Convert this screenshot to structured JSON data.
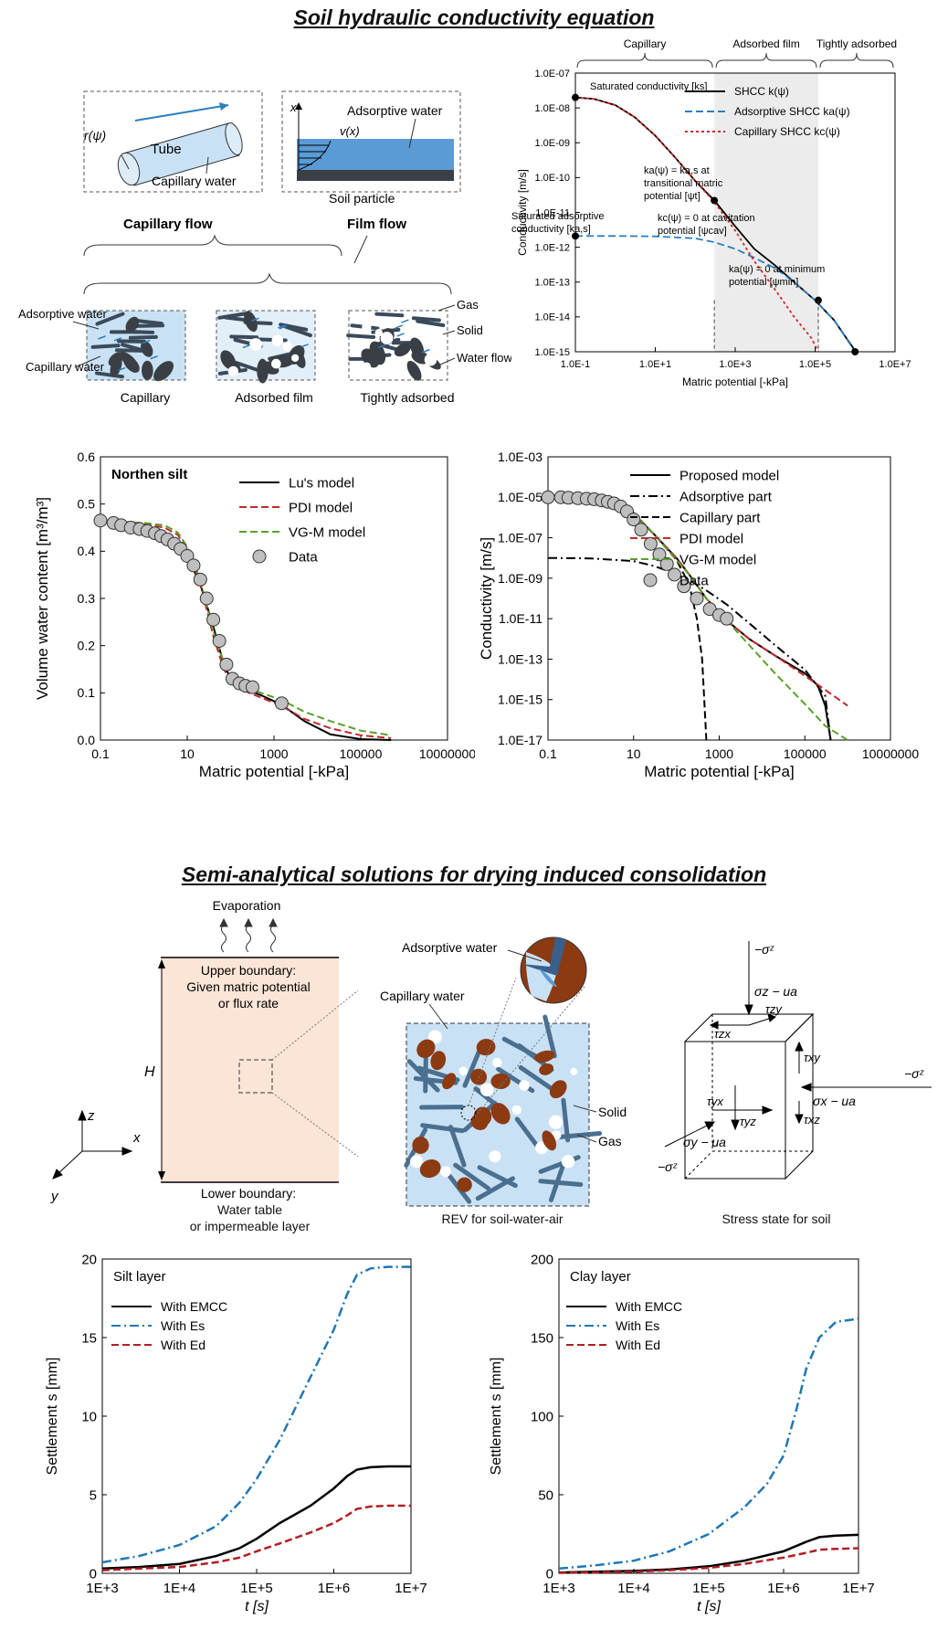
{
  "section1": {
    "title": "Soil hydraulic conductivity equation"
  },
  "section2": {
    "title": "Semi-analytical solutions for drying induced consolidation"
  },
  "flow_schematic": {
    "tube_label": "Tube",
    "radius_label": "r(ψ)",
    "capillary_water_label": "Capillary water",
    "x_axis": "x",
    "adsorptive_water_label": "Adsorptive water",
    "velocity_label": "v(x)",
    "soil_particle_label": "Soil particle",
    "capillary_flow_label": "Capillary flow",
    "film_flow_label": "Film flow",
    "panels": [
      "Capillary",
      "Adsorbed film",
      "Tightly adsorbed"
    ],
    "left_labels": [
      "Adsorptive water",
      "Capillary water"
    ],
    "right_labels": [
      "Gas",
      "Solid",
      "Water flow"
    ]
  },
  "chart_data": [
    {
      "type": "line",
      "id": "shcc",
      "xlabel": "Matric potential [-kPa]",
      "ylabel": "Conductivity [m/s]",
      "xscale": "log",
      "yscale": "log",
      "xlim": [
        0.1,
        10000000
      ],
      "ylim": [
        1e-15,
        1e-07
      ],
      "x_ticks": [
        "1.0E-1",
        "1.0E+1",
        "1.0E+3",
        "1.0E+5",
        "1.0E+7"
      ],
      "y_ticks": [
        "1.0E-07",
        "1.0E-08",
        "1.0E-09",
        "1.0E-10",
        "1.0E-11",
        "1.0E-12",
        "1.0E-13",
        "1.0E-14",
        "1.0E-15"
      ],
      "regions": [
        "Capillary",
        "Adsorbed film",
        "Tightly adsorbed"
      ],
      "legend_position": "top-right",
      "series": [
        {
          "name": "SHCC k(ψ)",
          "color": "#000000",
          "style": "solid",
          "x": [
            0.1,
            0.3,
            1,
            3,
            10,
            30,
            100,
            300,
            1000,
            3000,
            10000,
            30000,
            100000,
            300000,
            600000,
            900000,
            1000000
          ],
          "y": [
            2e-08,
            1.8e-08,
            1.2e-08,
            5.5e-09,
            1.6e-09,
            4e-10,
            8e-11,
            2.2e-11,
            4e-12,
            9e-13,
            3e-13,
            1e-13,
            3e-14,
            8e-15,
            2.5e-15,
            1.3e-15,
            1e-15
          ]
        },
        {
          "name": "Adsorptive SHCC ka(ψ)",
          "color": "#2a7fc1",
          "style": "dashed",
          "x": [
            0.1,
            1,
            10,
            100,
            300,
            1000,
            3000,
            10000,
            30000,
            100000,
            300000,
            1000000
          ],
          "y": [
            2.1e-12,
            2.1e-12,
            2.05e-12,
            1.8e-12,
            1.4e-12,
            9e-13,
            5e-13,
            2.5e-13,
            1e-13,
            3e-14,
            8e-15,
            1e-15
          ]
        },
        {
          "name": "Capillary SHCC kc(ψ)",
          "color": "#d62728",
          "style": "dotted",
          "x": [
            0.1,
            0.3,
            1,
            3,
            10,
            30,
            100,
            300,
            1000,
            3000,
            10000,
            30000,
            80000,
            120000
          ],
          "y": [
            2e-08,
            1.8e-08,
            1.2e-08,
            5.5e-09,
            1.6e-09,
            4e-10,
            8e-11,
            2e-11,
            3e-12,
            4e-13,
            6e-14,
            1e-14,
            2.5e-15,
            1e-15
          ]
        }
      ],
      "annotations": [
        {
          "text": "Saturated conductivity [ks]",
          "x": 0.1,
          "y": 2e-08
        },
        {
          "text": "Saturated adsorptive conductivity [ka,s]",
          "x": 0.1,
          "y": 2.1e-12
        },
        {
          "text": "ka(ψ) = ka,s at transitional matric potential [ψt]",
          "x": 300,
          "y": 2.2e-11
        },
        {
          "text": "kc(ψ) = 0 at cavitation potential [ψcav]",
          "x": 120000,
          "y": 1e-15
        },
        {
          "text": "ka(ψ) = 0 at minimum potential [ψmin]",
          "x": 1000000,
          "y": 1e-15
        }
      ],
      "markers": [
        {
          "x": 0.1,
          "y": 2e-08
        },
        {
          "x": 0.1,
          "y": 2.1e-12
        },
        {
          "x": 300,
          "y": 2.2e-11
        },
        {
          "x": 120000,
          "y": 3e-14
        },
        {
          "x": 1000000,
          "y": 1e-15
        }
      ]
    },
    {
      "type": "line",
      "id": "swcc",
      "title": "Northen silt",
      "xlabel": "Matric potential [-kPa]",
      "ylabel": "Volume water content [m³/m³]",
      "xscale": "log",
      "xlim": [
        0.1,
        10000000
      ],
      "ylim": [
        0,
        0.6
      ],
      "x_ticks": [
        "0.1",
        "10",
        "1000",
        "100000",
        "10000000"
      ],
      "y_ticks": [
        "0.0",
        "0.1",
        "0.2",
        "0.3",
        "0.4",
        "0.5",
        "0.6"
      ],
      "legend_position": "top-right",
      "series": [
        {
          "name": "Lu's model",
          "color": "#000000",
          "style": "solid",
          "x": [
            0.1,
            1,
            3,
            6,
            10,
            20,
            40,
            70,
            100,
            200,
            500,
            1500,
            5000,
            20000,
            100000,
            500000
          ],
          "y": [
            0.465,
            0.455,
            0.44,
            0.42,
            0.39,
            0.33,
            0.24,
            0.16,
            0.13,
            0.11,
            0.095,
            0.075,
            0.04,
            0.012,
            0.002,
            0
          ]
        },
        {
          "name": "PDI model",
          "color": "#c0292b",
          "style": "dashed",
          "x": [
            0.1,
            1,
            3,
            6,
            10,
            20,
            40,
            70,
            100,
            200,
            500,
            1500,
            5000,
            20000,
            100000,
            500000
          ],
          "y": [
            0.465,
            0.458,
            0.45,
            0.435,
            0.405,
            0.33,
            0.22,
            0.15,
            0.125,
            0.105,
            0.09,
            0.072,
            0.045,
            0.025,
            0.01,
            0.004
          ]
        },
        {
          "name": "VG-M model",
          "color": "#5aa02c",
          "style": "dashed",
          "x": [
            0.1,
            1,
            3,
            6,
            10,
            20,
            40,
            70,
            100,
            200,
            500,
            1500,
            5000,
            20000,
            100000,
            500000
          ],
          "y": [
            0.465,
            0.46,
            0.455,
            0.44,
            0.41,
            0.34,
            0.23,
            0.165,
            0.14,
            0.115,
            0.1,
            0.085,
            0.06,
            0.04,
            0.02,
            0.01
          ]
        }
      ],
      "data_series": {
        "name": "Data",
        "x": [
          0.1,
          0.2,
          0.3,
          0.5,
          0.8,
          1.2,
          1.8,
          2.5,
          3.5,
          5,
          7,
          10,
          14,
          20,
          28,
          40,
          55,
          80,
          110,
          160,
          220,
          320,
          1500
        ],
        "y": [
          0.465,
          0.46,
          0.455,
          0.45,
          0.447,
          0.443,
          0.438,
          0.432,
          0.425,
          0.416,
          0.405,
          0.39,
          0.37,
          0.34,
          0.3,
          0.255,
          0.21,
          0.16,
          0.13,
          0.12,
          0.115,
          0.112,
          0.078
        ]
      }
    },
    {
      "type": "line",
      "id": "hcf",
      "xlabel": "Matric potential [-kPa]",
      "ylabel": "Conductivity [m/s]",
      "xscale": "log",
      "yscale": "log",
      "xlim": [
        0.1,
        10000000
      ],
      "ylim": [
        1e-17,
        0.001
      ],
      "x_ticks": [
        "0.1",
        "10",
        "1000",
        "100000",
        "10000000"
      ],
      "y_ticks": [
        "1.0E-03",
        "1.0E-05",
        "1.0E-07",
        "1.0E-09",
        "1.0E-11",
        "1.0E-13",
        "1.0E-15",
        "1.0E-17"
      ],
      "legend_position": "top-right",
      "series": [
        {
          "name": "Proposed model",
          "color": "#000000",
          "style": "solid",
          "x": [
            0.1,
            1,
            3,
            10,
            30,
            100,
            200,
            500,
            1500,
            5000,
            20000,
            100000,
            200000,
            300000,
            400000
          ],
          "y": [
            1e-05,
            8e-06,
            5e-06,
            1.5e-06,
            1.5e-07,
            1e-08,
            1.5e-09,
            1e-10,
            8e-12,
            1e-12,
            1.5e-13,
            2e-14,
            5e-15,
            5e-16,
            1e-17
          ]
        },
        {
          "name": "Adsorptive part",
          "color": "#000000",
          "style": "dashdot",
          "x": [
            0.1,
            1,
            10,
            30,
            100,
            200,
            500,
            1500,
            5000,
            20000,
            100000,
            300000,
            400000
          ],
          "y": [
            1e-08,
            9.5e-09,
            7e-09,
            4e-09,
            1.6e-09,
            8e-10,
            2.5e-10,
            5e-11,
            6e-12,
            5e-13,
            3e-14,
            1.5e-15,
            1e-17
          ]
        },
        {
          "name": "Capillary part",
          "color": "#000000",
          "style": "dashed",
          "x": [
            0.1,
            1,
            3,
            10,
            30,
            100,
            200,
            300,
            400,
            500
          ],
          "y": [
            1e-05,
            8e-06,
            5e-06,
            1.5e-06,
            1.5e-07,
            8e-09,
            5e-10,
            1e-11,
            1e-13,
            1e-17
          ]
        },
        {
          "name": "PDI model",
          "color": "#c0292b",
          "style": "dashed",
          "x": [
            0.1,
            1,
            3,
            10,
            30,
            100,
            200,
            500,
            1500,
            5000,
            20000,
            100000,
            300000,
            1000000
          ],
          "y": [
            1e-05,
            8e-06,
            5e-06,
            1.5e-06,
            1.5e-07,
            1e-08,
            1.5e-09,
            1e-10,
            8e-12,
            1e-12,
            1.5e-13,
            1.5e-14,
            3e-15,
            5e-16
          ]
        },
        {
          "name": "VG-M model",
          "color": "#5aa02c",
          "style": "dashed",
          "x": [
            0.1,
            1,
            3,
            10,
            30,
            100,
            200,
            500,
            1500,
            5000,
            20000,
            100000,
            300000,
            1000000
          ],
          "y": [
            1e-05,
            9e-06,
            6e-06,
            1.8e-06,
            1.5e-07,
            8e-09,
            1.5e-09,
            1e-10,
            8e-12,
            5e-13,
            2e-14,
            6e-16,
            5e-17,
            1e-17
          ]
        }
      ],
      "data_series": {
        "name": "Data",
        "x": [
          0.1,
          0.2,
          0.3,
          0.5,
          0.8,
          1.2,
          1.8,
          2.5,
          3.5,
          5,
          7,
          10,
          15,
          25,
          40,
          60,
          90,
          150,
          300,
          600,
          1000,
          1500
        ],
        "y": [
          1e-05,
          1e-05,
          9.5e-06,
          9e-06,
          8.5e-06,
          8e-06,
          7e-06,
          6e-06,
          5e-06,
          3.5e-06,
          2e-06,
          8e-07,
          2.5e-07,
          5e-08,
          1.5e-08,
          5e-09,
          1.5e-09,
          4e-10,
          1e-10,
          3e-11,
          1.5e-11,
          1e-11
        ]
      }
    },
    {
      "type": "line",
      "id": "silt",
      "title": "Silt layer",
      "xlabel": "t [s]",
      "ylabel": "Settlement s [mm]",
      "xscale": "log",
      "xlim": [
        1000,
        10000000
      ],
      "ylim": [
        0,
        20
      ],
      "x_ticks": [
        "1E+3",
        "1E+4",
        "1E+5",
        "1E+6",
        "1E+7"
      ],
      "y_ticks": [
        "0",
        "5",
        "10",
        "15",
        "20"
      ],
      "legend_position": "top-left",
      "series": [
        {
          "name": "With EMCC",
          "color": "#000000",
          "style": "solid",
          "x": [
            1000,
            3000,
            10000,
            30000,
            60000,
            100000,
            200000,
            500000,
            1000000,
            1500000,
            2000000,
            3000000,
            5000000,
            10000000
          ],
          "y": [
            0.3,
            0.4,
            0.6,
            1.1,
            1.6,
            2.2,
            3.2,
            4.3,
            5.4,
            6.2,
            6.6,
            6.75,
            6.8,
            6.8
          ]
        },
        {
          "name": "With Es",
          "color": "#1f77b4",
          "style": "dashdot",
          "x": [
            1000,
            3000,
            10000,
            30000,
            60000,
            100000,
            200000,
            500000,
            1000000,
            1500000,
            2000000,
            3000000,
            5000000,
            10000000
          ],
          "y": [
            0.7,
            1.1,
            1.8,
            3.0,
            4.5,
            6.0,
            8.5,
            12.5,
            15.5,
            17.8,
            19.0,
            19.4,
            19.5,
            19.5
          ]
        },
        {
          "name": "With Ed",
          "color": "#b01e23",
          "style": "dashed",
          "x": [
            1000,
            3000,
            10000,
            30000,
            60000,
            100000,
            200000,
            500000,
            1000000,
            1500000,
            2000000,
            3000000,
            5000000,
            10000000
          ],
          "y": [
            0.2,
            0.3,
            0.4,
            0.7,
            1.0,
            1.4,
            1.9,
            2.6,
            3.2,
            3.7,
            4.1,
            4.25,
            4.3,
            4.3
          ]
        }
      ]
    },
    {
      "type": "line",
      "id": "clay",
      "title": "Clay layer",
      "xlabel": "t [s]",
      "ylabel": "Settlement s [mm]",
      "xscale": "log",
      "xlim": [
        1000,
        10000000
      ],
      "ylim": [
        0,
        200
      ],
      "x_ticks": [
        "1E+3",
        "1E+4",
        "1E+5",
        "1E+6",
        "1E+7"
      ],
      "y_ticks": [
        "0",
        "50",
        "100",
        "150",
        "200"
      ],
      "legend_position": "top-left",
      "series": [
        {
          "name": "With EMCC",
          "color": "#000000",
          "style": "solid",
          "x": [
            1000,
            3000,
            10000,
            30000,
            100000,
            300000,
            1000000,
            2000000,
            3000000,
            5000000,
            10000000
          ],
          "y": [
            0.5,
            1,
            1.5,
            2.5,
            4.5,
            8,
            14,
            20,
            23,
            24,
            24.5
          ]
        },
        {
          "name": "With Es",
          "color": "#1f77b4",
          "style": "dashdot",
          "x": [
            1000,
            3000,
            10000,
            30000,
            100000,
            300000,
            600000,
            1000000,
            1500000,
            2000000,
            3000000,
            5000000,
            10000000
          ],
          "y": [
            3,
            5,
            8,
            14,
            25,
            42,
            57,
            75,
            105,
            130,
            150,
            160,
            162
          ]
        },
        {
          "name": "With Ed",
          "color": "#b01e23",
          "style": "dashed",
          "x": [
            1000,
            3000,
            10000,
            30000,
            100000,
            300000,
            1000000,
            2000000,
            3000000,
            5000000,
            10000000
          ],
          "y": [
            0.3,
            0.6,
            1,
            2,
            3.5,
            6,
            10,
            13,
            15,
            15.5,
            16
          ]
        }
      ]
    }
  ],
  "boundary_diagram": {
    "evaporation": "Evaporation",
    "upper_boundary": [
      "Upper boundary:",
      "Given matric potential",
      "or flux rate"
    ],
    "lower_boundary": [
      "Lower boundary:",
      "Water table",
      "or impermeable layer"
    ],
    "height_label": "H",
    "axes": {
      "z": "z",
      "x": "x",
      "y": "y"
    }
  },
  "rev_diagram": {
    "adsorptive_water": "Adsorptive water",
    "capillary_water": "Capillary water",
    "solid": "Solid",
    "gas": "Gas",
    "caption": "REV for soil-water-air"
  },
  "stress_diagram": {
    "caption": "Stress state for soil",
    "top_load": "−σᶻ",
    "right_load": "−σᶻ",
    "left_load": "−σᶻ",
    "sigma_z": "σz − ua",
    "sigma_x": "σx − ua",
    "sigma_y": "σy − ua",
    "tau_zx": "τzx",
    "tau_zy": "τzy",
    "tau_xy": "τxy",
    "tau_xz": "τxz",
    "tau_yx": "τyx",
    "tau_yz": "τyz"
  },
  "colors": {
    "water_blue": "#5b9bd5",
    "light_water": "#c9e1f4",
    "solid_dark": "#3a3f45",
    "soil_brown": "#8b3a12",
    "soil_bg": "#fbe5d6",
    "film_band": "#ececec"
  }
}
